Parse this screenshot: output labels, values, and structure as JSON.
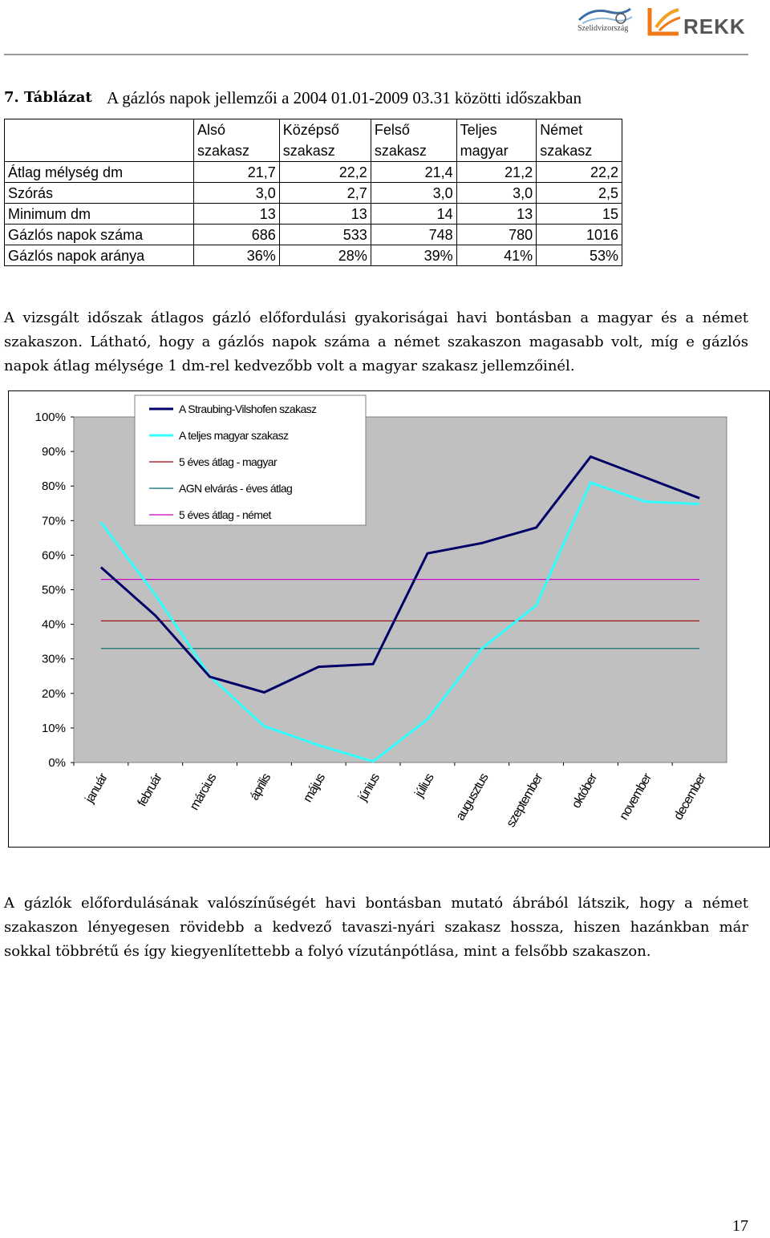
{
  "header": {
    "logo1_text": "Szelidvizország",
    "logo2_text": "REKK"
  },
  "caption": {
    "number": "7. Táblázat",
    "title": "A gázlós napok jellemzői a 2004 01.01-2009 03.31 közötti időszakban"
  },
  "table": {
    "columns": [
      {
        "line1": "Alsó",
        "line2": "szakasz"
      },
      {
        "line1": "Középső",
        "line2": "szakasz"
      },
      {
        "line1": "Felső",
        "line2": "szakasz"
      },
      {
        "line1": "Teljes",
        "line2": "magyar"
      },
      {
        "line1": "Német",
        "line2": "szakasz"
      }
    ],
    "rows": [
      {
        "label": "Átlag mélység dm",
        "values": [
          "21,7",
          "22,2",
          "21,4",
          "21,2",
          "22,2"
        ]
      },
      {
        "label": "Szórás",
        "values": [
          "3,0",
          "2,7",
          "3,0",
          "3,0",
          "2,5"
        ]
      },
      {
        "label": "Minimum dm",
        "values": [
          "13",
          "13",
          "14",
          "13",
          "15"
        ]
      },
      {
        "label": "Gázlós napok száma",
        "values": [
          "686",
          "533",
          "748",
          "780",
          "1016"
        ]
      },
      {
        "label": "Gázlós napok aránya",
        "values": [
          "36%",
          "28%",
          "39%",
          "41%",
          "53%"
        ]
      }
    ]
  },
  "paragraph1": "A vizsgált időszak átlagos gázló előfordulási gyakoriságai havi bontásban a magyar és a német szakaszon. Látható, hogy a gázlós napok száma a német szakaszon magasabb volt, míg e gázlós napok átlag mélysége 1 dm-rel kedvezőbb volt a magyar szakasz jellemzőinél.",
  "paragraph2": "A gázlók előfordulásának valószínűségét havi bontásban mutató ábrából látszik, hogy a német szakaszon lényegesen rövidebb a kedvező tavaszi-nyári szakasz hossza, hiszen hazánkban már sokkal többrétű és így kiegyenlítettebb a folyó vízutánpótlása, mint a felsőbb szakaszon.",
  "page_number": "17",
  "chart_data": {
    "type": "line",
    "categories": [
      "január",
      "február",
      "március",
      "április",
      "május",
      "június",
      "július",
      "augusztus",
      "szeptember",
      "október",
      "november",
      "december"
    ],
    "y_ticks": [
      "0%",
      "10%",
      "20%",
      "30%",
      "40%",
      "50%",
      "60%",
      "70%",
      "80%",
      "90%",
      "100%"
    ],
    "ylim": [
      0,
      100
    ],
    "legend_position": "top-left inside",
    "series": [
      {
        "name": "A Straubing-Vilshofen szakasz",
        "color": "#000066",
        "values": [
          56.5,
          42.5,
          24.8,
          20.3,
          27.7,
          28.5,
          60.5,
          63.5,
          68,
          88.5,
          82.5,
          76.5
        ]
      },
      {
        "name": "A teljes magyar szakasz",
        "color": "#33ffff",
        "values": [
          69.5,
          48.5,
          25,
          10.5,
          5,
          0.3,
          12.5,
          33,
          45.5,
          81,
          75.5,
          74.8
        ]
      },
      {
        "name": "5 éves átlag - magyar",
        "color": "#990000",
        "values": [
          41,
          41,
          41,
          41,
          41,
          41,
          41,
          41,
          41,
          41,
          41,
          41
        ]
      },
      {
        "name": "AGN elvárás - éves átlag",
        "color": "#006666",
        "values": [
          33,
          33,
          33,
          33,
          33,
          33,
          33,
          33,
          33,
          33,
          33,
          33
        ]
      },
      {
        "name": "5 éves átlag - német",
        "color": "#cc00cc",
        "values": [
          53,
          53,
          53,
          53,
          53,
          53,
          53,
          53,
          53,
          53,
          53,
          53
        ]
      }
    ]
  }
}
